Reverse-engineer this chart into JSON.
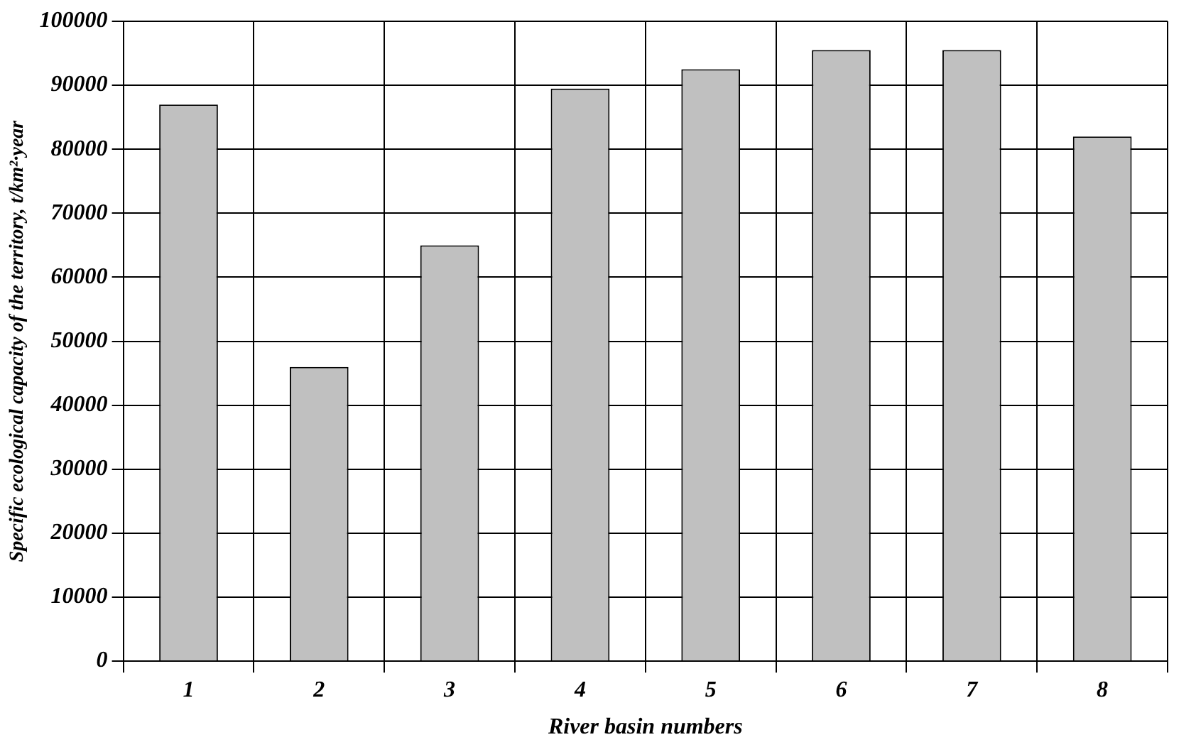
{
  "chart_data": {
    "type": "bar",
    "xlabel": "River basin numbers",
    "ylabel": "Specific ecological capacity of the territory, t/km²·year",
    "categories": [
      "1",
      "2",
      "3",
      "4",
      "5",
      "6",
      "7",
      "8"
    ],
    "values": [
      87000,
      46000,
      65000,
      89500,
      92500,
      95500,
      95500,
      82000
    ],
    "color": "#c0c0c0",
    "ylim": [
      0,
      100000
    ],
    "yticks": [
      0,
      10000,
      20000,
      30000,
      40000,
      50000,
      60000,
      70000,
      80000,
      90000,
      100000
    ],
    "grid": true
  }
}
